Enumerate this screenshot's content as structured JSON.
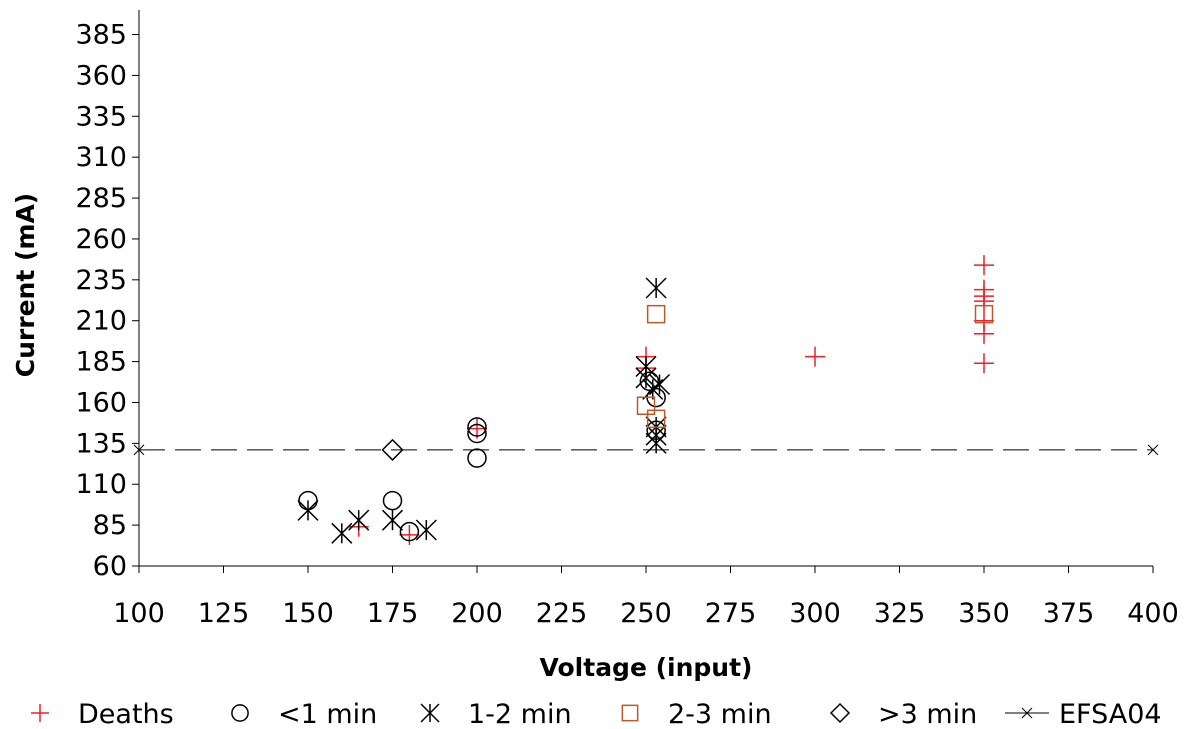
{
  "chart_data": {
    "type": "scatter",
    "xlabel": "Voltage (input)",
    "ylabel": "Current (mA)",
    "xlim": [
      100,
      400
    ],
    "ylim": [
      60,
      400
    ],
    "x_ticks": [
      100,
      125,
      150,
      175,
      200,
      225,
      250,
      275,
      300,
      325,
      350,
      375,
      400
    ],
    "y_ticks": [
      60,
      85,
      110,
      135,
      160,
      185,
      210,
      235,
      260,
      285,
      310,
      335,
      360,
      385
    ],
    "grid": false,
    "legend_position": "bottom",
    "series": [
      {
        "name": "Deaths",
        "marker": "plus",
        "color": "#e8212a",
        "points": [
          [
            165,
            84
          ],
          [
            180,
            79
          ],
          [
            200,
            144
          ],
          [
            250,
            188
          ],
          [
            250,
            181
          ],
          [
            300,
            188
          ],
          [
            350,
            244
          ],
          [
            350,
            229
          ],
          [
            350,
            225
          ],
          [
            350,
            222
          ],
          [
            350,
            210
          ],
          [
            350,
            202
          ],
          [
            350,
            184
          ]
        ]
      },
      {
        "name": "<1 min",
        "marker": "circle",
        "color": "#000000",
        "points": [
          [
            150,
            100
          ],
          [
            175,
            100
          ],
          [
            180,
            81
          ],
          [
            200,
            145
          ],
          [
            200,
            141
          ],
          [
            200,
            126
          ],
          [
            251,
            173
          ],
          [
            253,
            163
          ],
          [
            253,
            143
          ]
        ]
      },
      {
        "name": "1-2 min",
        "marker": "asterisk",
        "color": "#000000",
        "points": [
          [
            150,
            94
          ],
          [
            160,
            80
          ],
          [
            165,
            88
          ],
          [
            175,
            88
          ],
          [
            185,
            82
          ],
          [
            250,
            182
          ],
          [
            250,
            175
          ],
          [
            252,
            168
          ],
          [
            253,
            230
          ],
          [
            254,
            171
          ],
          [
            253,
            145
          ],
          [
            253,
            140
          ],
          [
            253,
            135
          ]
        ]
      },
      {
        "name": "2-3 min",
        "marker": "square",
        "color": "#b85a2a",
        "points": [
          [
            250,
            158
          ],
          [
            253,
            214
          ],
          [
            253,
            150
          ],
          [
            350,
            214
          ]
        ]
      },
      {
        "name": ">3 min",
        "marker": "diamond",
        "color": "#000000",
        "points": [
          [
            175,
            131
          ]
        ]
      },
      {
        "name": "EFSA04",
        "marker": "line-x",
        "color": "#000000",
        "line_style": "dashed",
        "points": [
          [
            100,
            131
          ],
          [
            400,
            131
          ]
        ]
      }
    ]
  }
}
